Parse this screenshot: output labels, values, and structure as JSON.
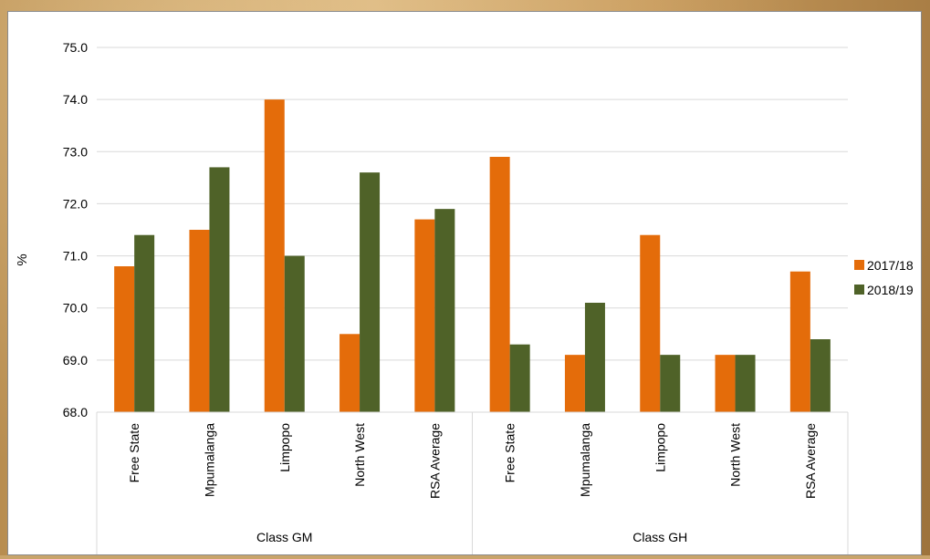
{
  "chart_data": {
    "type": "bar",
    "title": "",
    "ylabel": "%",
    "xlabel": "",
    "ylim": [
      68.0,
      75.0
    ],
    "yticks": [
      "68.0",
      "69.0",
      "70.0",
      "71.0",
      "72.0",
      "73.0",
      "74.0",
      "75.0"
    ],
    "groups": [
      {
        "label": "Class GM",
        "categories": [
          "Free State",
          "Mpumalanga",
          "Limpopo",
          "North West",
          "RSA Average"
        ]
      },
      {
        "label": "Class GH",
        "categories": [
          "Free State",
          "Mpumalanga",
          "Limpopo",
          "North West",
          "RSA Average"
        ]
      }
    ],
    "series": [
      {
        "name": "2017/18",
        "color": "#E46C0A",
        "values": [
          70.8,
          71.5,
          74.0,
          69.5,
          71.7,
          72.9,
          69.1,
          71.4,
          69.1,
          70.7
        ]
      },
      {
        "name": "2018/19",
        "color": "#4F6228",
        "values": [
          71.4,
          72.7,
          71.0,
          72.6,
          71.9,
          69.3,
          70.1,
          69.1,
          69.1,
          69.4
        ]
      }
    ],
    "grid": true,
    "legend_position": "right"
  }
}
